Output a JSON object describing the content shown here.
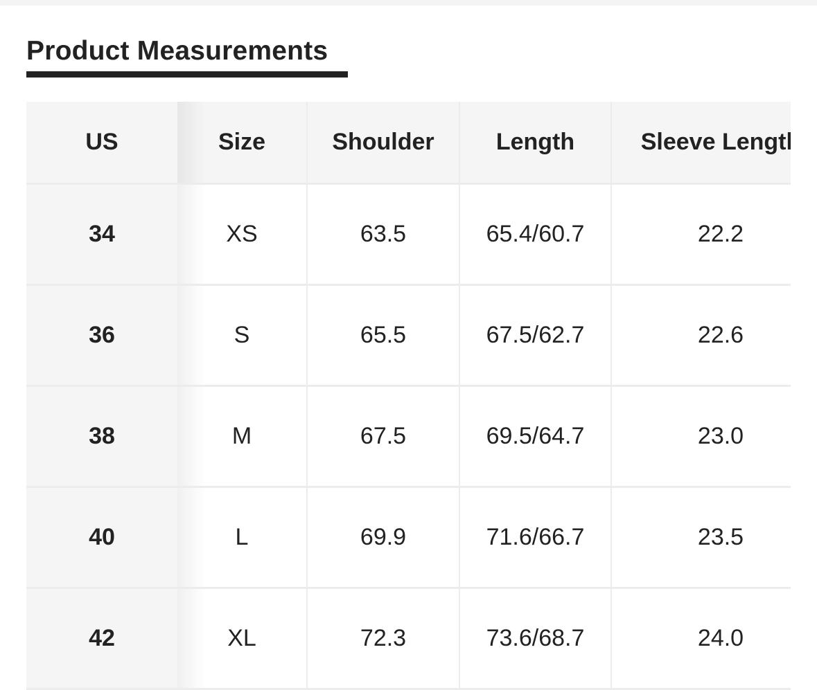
{
  "title": "Product Measurements",
  "table": {
    "headers": [
      "US",
      "Size",
      "Shoulder",
      "Length",
      "Sleeve Length"
    ],
    "rows": [
      [
        "34",
        "XS",
        "63.5",
        "65.4/60.7",
        "22.2"
      ],
      [
        "36",
        "S",
        "65.5",
        "67.5/62.7",
        "22.6"
      ],
      [
        "38",
        "M",
        "67.5",
        "69.5/64.7",
        "23.0"
      ],
      [
        "40",
        "L",
        "69.9",
        "71.6/66.7",
        "23.5"
      ],
      [
        "42",
        "XL",
        "72.3",
        "73.6/68.7",
        "24.0"
      ]
    ]
  }
}
